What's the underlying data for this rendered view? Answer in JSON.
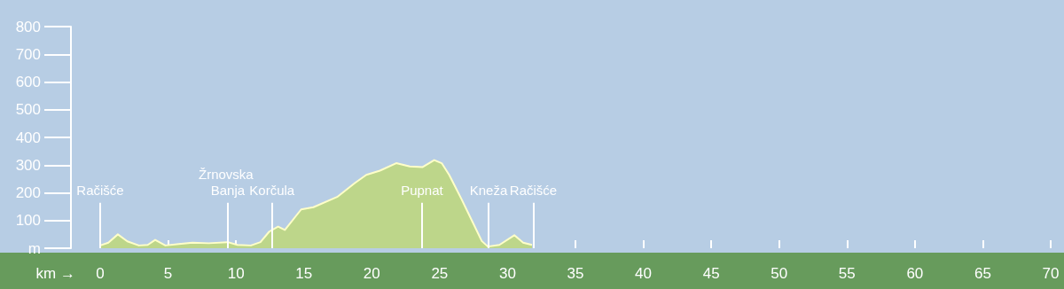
{
  "chart_data": {
    "type": "area",
    "xlabel": "km →",
    "color": "#bdd68a",
    "x": [
      0,
      0.6,
      1.3,
      2.0,
      2.85,
      3.5,
      4.05,
      4.8,
      5.8,
      6.8,
      8.0,
      9.4,
      10.1,
      11.1,
      11.8,
      12.45,
      13.1,
      13.6,
      14.8,
      15.7,
      17.45,
      18.75,
      19.6,
      20.6,
      21.8,
      22.8,
      23.75,
      24.6,
      25.15,
      25.7,
      26.6,
      27.45,
      28.1,
      28.55,
      29.4,
      30.5,
      31.15,
      31.8
    ],
    "values": [
      10,
      20,
      50,
      25,
      10,
      12,
      30,
      10,
      15,
      20,
      18,
      22,
      12,
      10,
      22,
      60,
      78,
      66,
      140,
      148,
      185,
      235,
      265,
      280,
      307,
      295,
      293,
      318,
      307,
      265,
      178,
      92,
      26,
      6,
      12,
      47,
      20,
      12
    ],
    "xlim": [
      0,
      70
    ],
    "xticks": [
      0,
      5,
      10,
      15,
      20,
      25,
      30,
      35,
      40,
      45,
      50,
      55,
      60,
      65,
      70
    ],
    "ylim": [
      0,
      800
    ],
    "yticks": [
      {
        "value": 0,
        "label": "m"
      },
      100,
      200,
      300,
      400,
      500,
      600,
      700,
      800
    ],
    "marker": "none",
    "ref_lines": [
      {
        "axis": "x",
        "value": 0,
        "label": "Račišće"
      },
      {
        "axis": "x",
        "value": 9.4,
        "label": "Žrnovska Banja"
      },
      {
        "axis": "x",
        "value": 12.65,
        "label": "Korčula"
      },
      {
        "axis": "x",
        "value": 23.7,
        "label": "Pupnat"
      },
      {
        "axis": "x",
        "value": 28.6,
        "label": "Kneža"
      },
      {
        "axis": "x",
        "value": 31.9,
        "label": "Račišće"
      }
    ]
  }
}
